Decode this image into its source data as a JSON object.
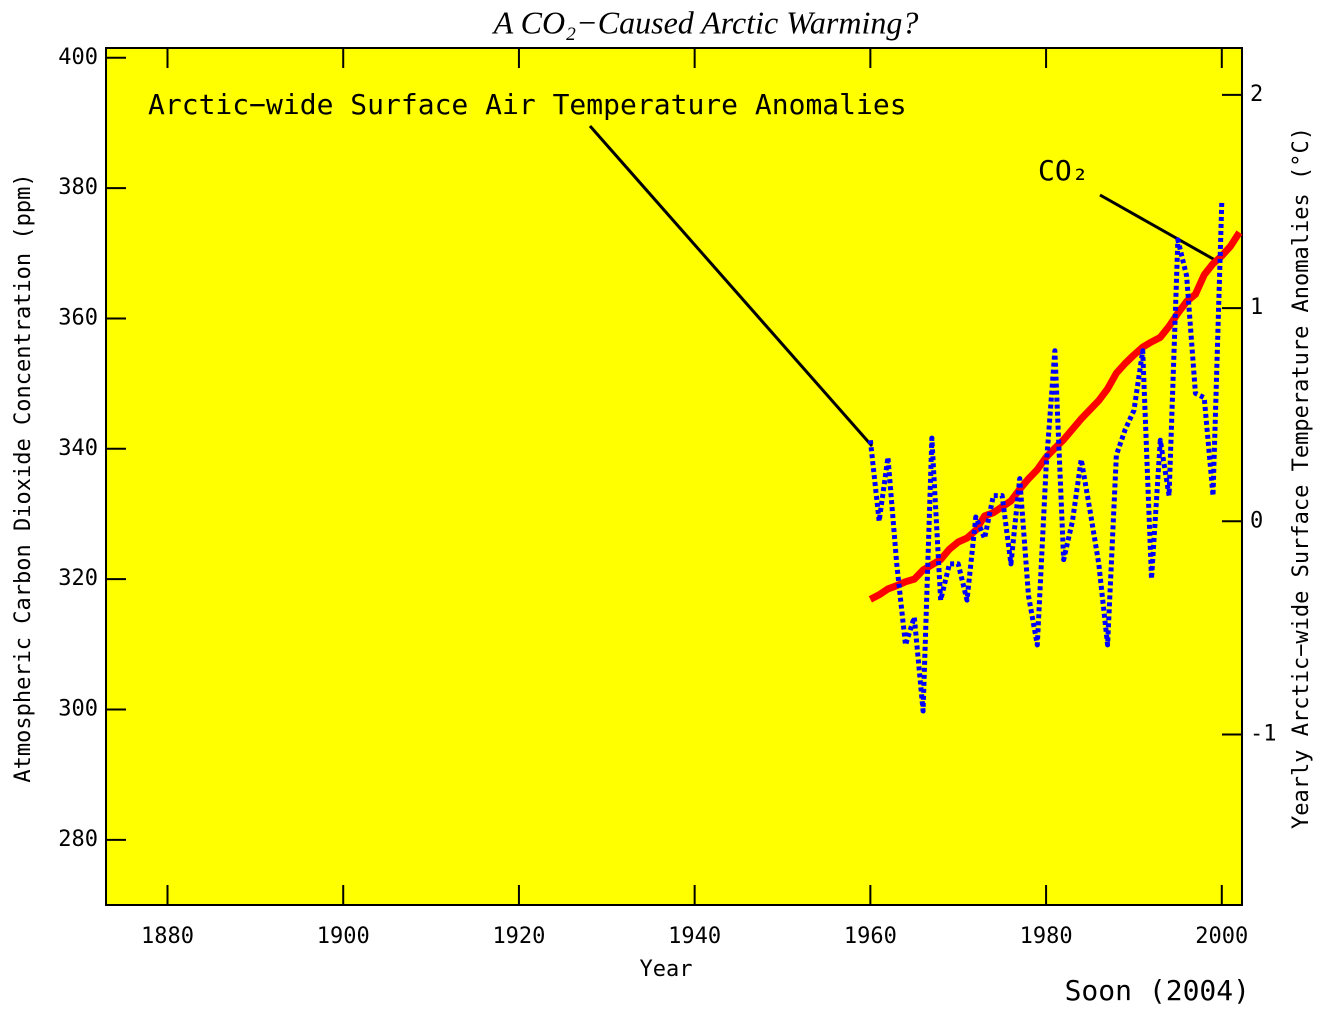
{
  "chart_data": {
    "type": "line",
    "title": "A CO₂−Caused Arctic Warming?",
    "x_label": "Year",
    "y_label": "Atmospheric Carbon Dioxide Concentration (ppm)",
    "y2_label": "Yearly Arctic−wide Surface Temperature Anomalies (°C)",
    "annotations": [
      "Arctic−wide Surface Air Temperature Anomalies",
      "CO₂",
      "Soon (2004)"
    ],
    "xlim": [
      1873,
      2002.3
    ],
    "xticks": [
      1880,
      1900,
      1920,
      1940,
      1960,
      1980,
      2000
    ],
    "ylim": [
      270,
      401.5
    ],
    "yticks": [
      280,
      300,
      320,
      340,
      360,
      380,
      400
    ],
    "y2lim": [
      -1.8,
      2.22
    ],
    "y2ticks": [
      -1,
      0,
      1,
      2
    ],
    "background": "#ffff00",
    "series": [
      {
        "name": "CO₂",
        "color": "#ff0000",
        "style": "solid",
        "axis": "y",
        "x": [
          1960,
          1961,
          1962,
          1963,
          1964,
          1965,
          1966,
          1967,
          1968,
          1969,
          1970,
          1971,
          1972,
          1973,
          1974,
          1975,
          1976,
          1977,
          1978,
          1979,
          1980,
          1981,
          1982,
          1983,
          1984,
          1985,
          1986,
          1987,
          1988,
          1989,
          1990,
          1991,
          1992,
          1993,
          1994,
          1995,
          1996,
          1997,
          1998,
          1999,
          2000,
          2001,
          2002
        ],
        "values": [
          316.9,
          317.6,
          318.5,
          319.0,
          319.6,
          320.0,
          321.4,
          322.2,
          323.0,
          324.6,
          325.7,
          326.3,
          327.5,
          329.7,
          330.2,
          331.1,
          332.0,
          333.8,
          335.4,
          336.8,
          338.7,
          340.1,
          341.4,
          343.0,
          344.6,
          346.0,
          347.4,
          349.2,
          351.6,
          353.1,
          354.4,
          355.6,
          356.4,
          357.1,
          358.8,
          360.8,
          362.6,
          363.7,
          366.7,
          368.4,
          369.6,
          371.1,
          373.2
        ]
      },
      {
        "name": "Arctic−wide Surface Air Temperature Anomalies",
        "color": "#0000ff",
        "style": "dotted",
        "axis": "y2",
        "x": [
          1960,
          1961,
          1962,
          1963,
          1964,
          1965,
          1966,
          1967,
          1968,
          1969,
          1970,
          1971,
          1972,
          1973,
          1974,
          1975,
          1976,
          1977,
          1978,
          1979,
          1980,
          1981,
          1982,
          1983,
          1984,
          1985,
          1986,
          1987,
          1988,
          1989,
          1990,
          1991,
          1992,
          1993,
          1994,
          1995,
          1996,
          1997,
          1998,
          1999,
          2000
        ],
        "values": [
          0.38,
          0.0,
          0.3,
          -0.2,
          -0.58,
          -0.45,
          -0.89,
          0.39,
          -0.37,
          -0.2,
          -0.2,
          -0.37,
          0.02,
          -0.08,
          0.12,
          0.12,
          -0.2,
          0.2,
          -0.35,
          -0.58,
          0.25,
          0.8,
          -0.18,
          0.0,
          0.29,
          0.05,
          -0.2,
          -0.58,
          0.31,
          0.43,
          0.52,
          0.8,
          -0.27,
          0.38,
          0.12,
          1.32,
          1.15,
          0.6,
          0.58,
          0.12,
          1.5
        ]
      }
    ]
  }
}
